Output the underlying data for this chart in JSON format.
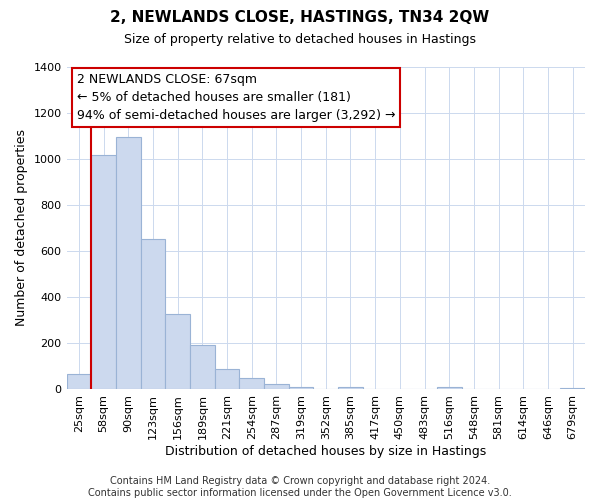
{
  "title": "2, NEWLANDS CLOSE, HASTINGS, TN34 2QW",
  "subtitle": "Size of property relative to detached houses in Hastings",
  "xlabel": "Distribution of detached houses by size in Hastings",
  "ylabel": "Number of detached properties",
  "bar_labels": [
    "25sqm",
    "58sqm",
    "90sqm",
    "123sqm",
    "156sqm",
    "189sqm",
    "221sqm",
    "254sqm",
    "287sqm",
    "319sqm",
    "352sqm",
    "385sqm",
    "417sqm",
    "450sqm",
    "483sqm",
    "516sqm",
    "548sqm",
    "581sqm",
    "614sqm",
    "646sqm",
    "679sqm"
  ],
  "bar_values": [
    65,
    1015,
    1095,
    650,
    325,
    190,
    85,
    47,
    22,
    10,
    0,
    10,
    0,
    0,
    0,
    10,
    0,
    0,
    0,
    0,
    5
  ],
  "bar_color": "#ccd9ee",
  "bar_edge_color": "#9ab3d5",
  "vline_x_index": 1,
  "vline_color": "#cc0000",
  "ylim": [
    0,
    1400
  ],
  "yticks": [
    0,
    200,
    400,
    600,
    800,
    1000,
    1200,
    1400
  ],
  "annotation_title": "2 NEWLANDS CLOSE: 67sqm",
  "annotation_line1": "← 5% of detached houses are smaller (181)",
  "annotation_line2": "94% of semi-detached houses are larger (3,292) →",
  "footer_line1": "Contains HM Land Registry data © Crown copyright and database right 2024.",
  "footer_line2": "Contains public sector information licensed under the Open Government Licence v3.0.",
  "grid_color": "#ccd9ee",
  "title_fontsize": 11,
  "subtitle_fontsize": 9,
  "annotation_fontsize": 9,
  "axis_fontsize": 9,
  "tick_fontsize": 8,
  "footer_fontsize": 7
}
